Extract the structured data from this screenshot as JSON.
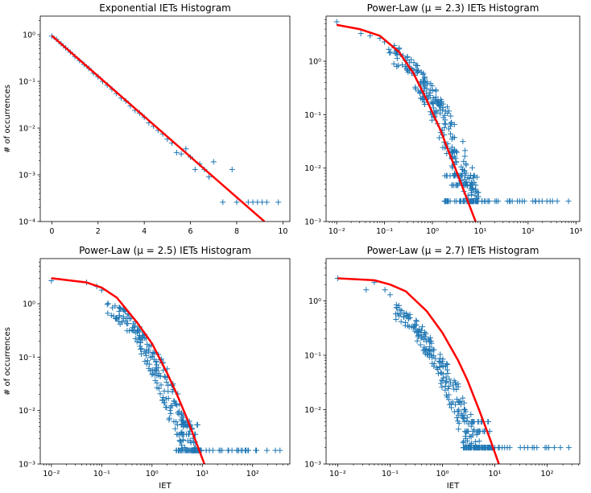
{
  "chart_data": [
    {
      "type": "scatter",
      "title": "Exponential IETs Histogram",
      "xlabel": "",
      "ylabel": "# of occurrences",
      "xscale": "linear",
      "yscale": "log",
      "xlim": [
        -0.5,
        10.3
      ],
      "ylim": [
        0.0001,
        2.5
      ],
      "xticks": [
        0,
        2,
        4,
        6,
        8,
        10
      ],
      "xtick_labels": [
        "0",
        "2",
        "4",
        "6",
        "8",
        "10"
      ],
      "yticks": [
        0.0001,
        0.001,
        0.01,
        0.1,
        1
      ],
      "ytick_labels": [
        "10⁻⁴",
        "10⁻³",
        "10⁻²",
        "10⁻¹",
        "10⁰"
      ],
      "grid": false,
      "series": [
        {
          "kind": "markers",
          "marker": "+",
          "color": "#1f77b4",
          "points": [
            [
              0.0,
              0.93
            ],
            [
              0.2,
              0.8
            ],
            [
              0.4,
              0.64
            ],
            [
              0.6,
              0.52
            ],
            [
              0.8,
              0.42
            ],
            [
              1.0,
              0.34
            ],
            [
              1.2,
              0.28
            ],
            [
              1.4,
              0.23
            ],
            [
              1.6,
              0.19
            ],
            [
              1.8,
              0.15
            ],
            [
              2.0,
              0.125
            ],
            [
              2.2,
              0.1
            ],
            [
              2.4,
              0.083
            ],
            [
              2.6,
              0.068
            ],
            [
              2.8,
              0.055
            ],
            [
              3.0,
              0.044
            ],
            [
              3.2,
              0.038
            ],
            [
              3.4,
              0.03
            ],
            [
              3.6,
              0.024
            ],
            [
              3.8,
              0.021
            ],
            [
              4.0,
              0.017
            ],
            [
              4.2,
              0.013
            ],
            [
              4.4,
              0.011
            ],
            [
              4.6,
              0.009
            ],
            [
              4.8,
              0.0075
            ],
            [
              5.0,
              0.0058
            ],
            [
              5.2,
              0.0048
            ],
            [
              5.4,
              0.003
            ],
            [
              5.6,
              0.0028
            ],
            [
              5.8,
              0.0036
            ],
            [
              6.0,
              0.0024
            ],
            [
              6.2,
              0.0013
            ],
            [
              6.4,
              0.0017
            ],
            [
              6.6,
              0.0013
            ],
            [
              6.8,
              0.0009
            ],
            [
              7.0,
              0.0019
            ],
            [
              7.4,
              0.00026
            ],
            [
              7.8,
              0.0013
            ],
            [
              8.0,
              0.00026
            ],
            [
              8.5,
              0.00026
            ],
            [
              8.7,
              0.00026
            ],
            [
              8.9,
              0.00026
            ],
            [
              9.1,
              0.00026
            ],
            [
              9.3,
              0.00026
            ],
            [
              9.8,
              0.00026
            ]
          ]
        },
        {
          "kind": "line",
          "color": "#ff0000",
          "points": [
            [
              0.0,
              0.95
            ],
            [
              9.2,
              0.0001
            ]
          ]
        }
      ]
    },
    {
      "type": "scatter",
      "title": "Power-Law (μ = 2.3) IETs Histogram",
      "xlabel": "",
      "ylabel": "",
      "xscale": "log",
      "yscale": "log",
      "xlim": [
        0.006,
        1200
      ],
      "ylim": [
        0.001,
        7
      ],
      "xticks": [
        0.01,
        0.1,
        1,
        10,
        100,
        1000
      ],
      "xtick_labels": [
        "10⁻²",
        "10⁻¹",
        "10⁰",
        "10¹",
        "10²",
        "10³"
      ],
      "yticks": [
        0.001,
        0.01,
        0.1,
        1
      ],
      "ytick_labels": [
        "10⁻³",
        "10⁻²",
        "10⁻¹",
        "10⁰"
      ],
      "grid": false,
      "series": [
        {
          "kind": "markers",
          "marker": "+",
          "color": "#1f77b4",
          "cloud": {
            "x_max": 700,
            "knee": 2.7,
            "scale": 1.3,
            "alpha": 2.3,
            "floor": 0.0024,
            "spread": 0.35,
            "n": 260,
            "floor_n": 60,
            "floor_start": 1.8,
            "floor_levels": [
              0.0024,
              0.0048,
              0.0072
            ]
          },
          "points": [
            [
              0.01,
              5.5
            ],
            [
              0.032,
              3.3
            ],
            [
              0.05,
              3.0
            ],
            [
              0.08,
              2.7
            ],
            [
              0.1,
              2.3
            ]
          ]
        },
        {
          "kind": "line",
          "color": "#ff0000",
          "points": [
            [
              0.01,
              4.8
            ],
            [
              0.03,
              4.0
            ],
            [
              0.08,
              3.0
            ],
            [
              0.2,
              1.5
            ],
            [
              0.4,
              0.6
            ],
            [
              0.7,
              0.22
            ],
            [
              1.0,
              0.11
            ],
            [
              1.5,
              0.05
            ],
            [
              2.0,
              0.025
            ],
            [
              3.0,
              0.01
            ],
            [
              5.0,
              0.003
            ],
            [
              8.0,
              0.001
            ]
          ]
        }
      ]
    },
    {
      "type": "scatter",
      "title": "Power-Law (μ = 2.5) IETs Histogram",
      "xlabel": "IET",
      "ylabel": "# of occurrences",
      "xscale": "log",
      "yscale": "log",
      "xlim": [
        0.006,
        550
      ],
      "ylim": [
        0.001,
        7
      ],
      "xticks": [
        0.01,
        0.1,
        1,
        10,
        100
      ],
      "xtick_labels": [
        "10⁻²",
        "10⁻¹",
        "10⁰",
        "10¹",
        "10²"
      ],
      "yticks": [
        0.001,
        0.01,
        0.1,
        1
      ],
      "ytick_labels": [
        "10⁻³",
        "10⁻²",
        "10⁻¹",
        "10⁰"
      ],
      "grid": false,
      "series": [
        {
          "kind": "markers",
          "marker": "+",
          "color": "#1f77b4",
          "cloud": {
            "x_max": 350,
            "knee": 2.7,
            "scale": 0.9,
            "alpha": 2.5,
            "floor": 0.0018,
            "spread": 0.3,
            "n": 240,
            "floor_n": 45,
            "floor_start": 3.0,
            "floor_levels": [
              0.0018,
              0.0036,
              0.0054
            ]
          },
          "points": [
            [
              0.01,
              2.7
            ],
            [
              0.05,
              2.5
            ],
            [
              0.08,
              2.1
            ],
            [
              0.1,
              1.8
            ]
          ]
        },
        {
          "kind": "line",
          "color": "#ff0000",
          "points": [
            [
              0.01,
              3.0
            ],
            [
              0.05,
              2.5
            ],
            [
              0.1,
              2.0
            ],
            [
              0.2,
              1.3
            ],
            [
              0.5,
              0.45
            ],
            [
              1.0,
              0.18
            ],
            [
              2.0,
              0.05
            ],
            [
              3.0,
              0.022
            ],
            [
              5.0,
              0.007
            ],
            [
              8.0,
              0.0022
            ],
            [
              11.0,
              0.001
            ]
          ]
        }
      ]
    },
    {
      "type": "scatter",
      "title": "Power-Law (μ = 2.7) IETs Histogram",
      "xlabel": "IET",
      "ylabel": "",
      "xscale": "log",
      "yscale": "log",
      "xlim": [
        0.006,
        420
      ],
      "ylim": [
        0.001,
        6
      ],
      "xticks": [
        0.01,
        0.1,
        1,
        10,
        100
      ],
      "xtick_labels": [
        "10⁻²",
        "10⁻¹",
        "10⁰",
        "10¹",
        "10²"
      ],
      "yticks": [
        0.001,
        0.01,
        0.1,
        1
      ],
      "ytick_labels": [
        "10⁻³",
        "10⁻²",
        "10⁻¹",
        "10⁰"
      ],
      "grid": false,
      "series": [
        {
          "kind": "markers",
          "marker": "+",
          "color": "#1f77b4",
          "cloud": {
            "x_max": 260,
            "knee": 2.7,
            "scale": 0.65,
            "alpha": 2.7,
            "floor": 0.002,
            "spread": 0.3,
            "n": 240,
            "floor_n": 55,
            "floor_start": 2.5,
            "floor_levels": [
              0.002,
              0.004,
              0.006
            ]
          },
          "points": [
            [
              0.01,
              2.6
            ],
            [
              0.035,
              1.6
            ],
            [
              0.05,
              2.2
            ],
            [
              0.08,
              1.6
            ],
            [
              0.1,
              1.3
            ]
          ]
        },
        {
          "kind": "line",
          "color": "#ff0000",
          "points": [
            [
              0.01,
              2.6
            ],
            [
              0.05,
              2.4
            ],
            [
              0.1,
              2.0
            ],
            [
              0.2,
              1.5
            ],
            [
              0.5,
              0.65
            ],
            [
              1.0,
              0.26
            ],
            [
              2.0,
              0.08
            ],
            [
              3.0,
              0.035
            ],
            [
              5.0,
              0.01
            ],
            [
              8.0,
              0.003
            ],
            [
              12.0,
              0.001
            ]
          ]
        }
      ]
    }
  ]
}
